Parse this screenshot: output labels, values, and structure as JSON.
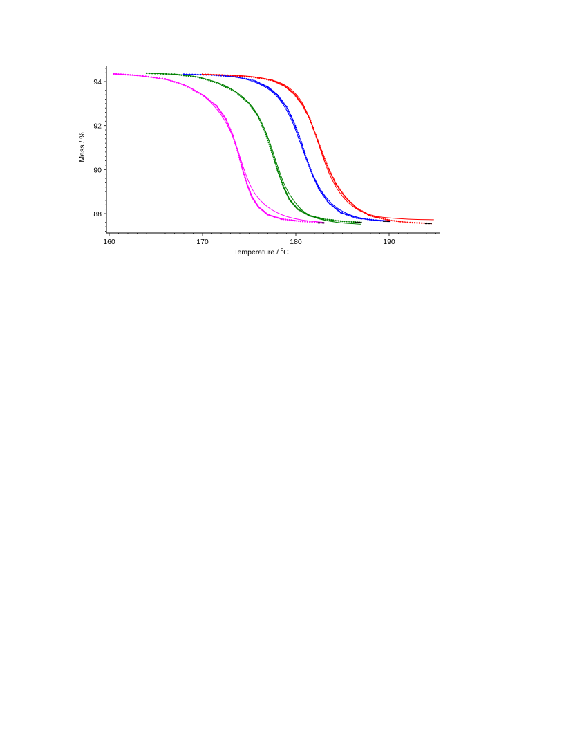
{
  "chart_data": {
    "type": "scatter",
    "title": "",
    "xlabel_main": "Temperature / ",
    "xlabel_sup": "o",
    "xlabel_tail": "C",
    "ylabel": "Mass / %",
    "xlim": [
      160,
      195
    ],
    "ylim": [
      87.2,
      94.6
    ],
    "x_ticks": [
      160,
      170,
      180,
      190
    ],
    "x_tick_labels": [
      "160",
      "170",
      "180",
      "190"
    ],
    "y_ticks": [
      88,
      90,
      92,
      94
    ],
    "y_tick_labels": [
      "88",
      "90",
      "92",
      "94"
    ],
    "grid": false,
    "legend": "none",
    "series": [
      {
        "color": "#ff00ff",
        "marker_points": [
          [
            160.5,
            94.35
          ],
          [
            163,
            94.28
          ],
          [
            166,
            94.12
          ],
          [
            168,
            93.85
          ],
          [
            170,
            93.4
          ],
          [
            171.5,
            92.9
          ],
          [
            172.5,
            92.3
          ],
          [
            173.2,
            91.6
          ],
          [
            173.8,
            90.8
          ],
          [
            174.3,
            90.0
          ],
          [
            174.8,
            89.3
          ],
          [
            175.3,
            88.75
          ],
          [
            176,
            88.3
          ],
          [
            177,
            87.95
          ],
          [
            178.5,
            87.75
          ],
          [
            180.5,
            87.65
          ],
          [
            183,
            87.58
          ]
        ],
        "fit_points": [
          [
            160.5,
            94.35
          ],
          [
            164,
            94.22
          ],
          [
            167,
            94.0
          ],
          [
            169,
            93.65
          ],
          [
            170.5,
            93.2
          ],
          [
            171.8,
            92.6
          ],
          [
            172.8,
            91.9
          ],
          [
            173.6,
            91.1
          ],
          [
            174.3,
            90.2
          ],
          [
            175,
            89.4
          ],
          [
            175.8,
            88.8
          ],
          [
            177,
            88.3
          ],
          [
            178.5,
            87.95
          ],
          [
            180.5,
            87.72
          ],
          [
            183,
            87.6
          ]
        ]
      },
      {
        "color": "#008000",
        "marker_points": [
          [
            164,
            94.38
          ],
          [
            167,
            94.33
          ],
          [
            169.5,
            94.2
          ],
          [
            171.5,
            93.95
          ],
          [
            173.5,
            93.55
          ],
          [
            175,
            93.0
          ],
          [
            176,
            92.4
          ],
          [
            176.8,
            91.6
          ],
          [
            177.5,
            90.7
          ],
          [
            178.1,
            89.9
          ],
          [
            178.7,
            89.2
          ],
          [
            179.3,
            88.65
          ],
          [
            180.2,
            88.2
          ],
          [
            181.5,
            87.9
          ],
          [
            183,
            87.75
          ],
          [
            185,
            87.65
          ],
          [
            187,
            87.6
          ]
        ],
        "fit_points": [
          [
            164,
            94.38
          ],
          [
            168,
            94.3
          ],
          [
            170.5,
            94.1
          ],
          [
            172.5,
            93.8
          ],
          [
            174.3,
            93.3
          ],
          [
            175.6,
            92.7
          ],
          [
            176.6,
            91.9
          ],
          [
            177.4,
            91.0
          ],
          [
            178.1,
            90.1
          ],
          [
            178.8,
            89.3
          ],
          [
            179.6,
            88.7
          ],
          [
            180.7,
            88.15
          ],
          [
            182.2,
            87.8
          ],
          [
            184.5,
            87.6
          ],
          [
            187,
            87.52
          ]
        ]
      },
      {
        "color": "#0000ff",
        "marker_points": [
          [
            168,
            94.33
          ],
          [
            171,
            94.3
          ],
          [
            173.5,
            94.22
          ],
          [
            175.5,
            94.05
          ],
          [
            177,
            93.75
          ],
          [
            178,
            93.4
          ],
          [
            179,
            92.85
          ],
          [
            179.8,
            92.15
          ],
          [
            180.5,
            91.35
          ],
          [
            181.1,
            90.55
          ],
          [
            181.8,
            89.75
          ],
          [
            182.5,
            89.1
          ],
          [
            183.5,
            88.5
          ],
          [
            184.8,
            88.05
          ],
          [
            186.5,
            87.8
          ],
          [
            188.5,
            87.7
          ],
          [
            190,
            87.65
          ]
        ],
        "fit_points": [
          [
            168,
            94.33
          ],
          [
            172,
            94.27
          ],
          [
            174.5,
            94.12
          ],
          [
            176.5,
            93.8
          ],
          [
            177.8,
            93.4
          ],
          [
            178.8,
            92.85
          ],
          [
            179.7,
            92.1
          ],
          [
            180.4,
            91.3
          ],
          [
            181.1,
            90.5
          ],
          [
            181.9,
            89.7
          ],
          [
            182.8,
            89.0
          ],
          [
            184,
            88.4
          ],
          [
            185.5,
            88.0
          ],
          [
            187.5,
            87.75
          ],
          [
            190,
            87.65
          ]
        ]
      },
      {
        "color": "#ff0000",
        "marker_points": [
          [
            170,
            94.33
          ],
          [
            173,
            94.28
          ],
          [
            175.5,
            94.2
          ],
          [
            177.5,
            94.05
          ],
          [
            178.8,
            93.8
          ],
          [
            179.8,
            93.45
          ],
          [
            180.7,
            92.95
          ],
          [
            181.5,
            92.3
          ],
          [
            182.2,
            91.5
          ],
          [
            182.8,
            90.8
          ],
          [
            183.5,
            90.05
          ],
          [
            184.3,
            89.35
          ],
          [
            185.3,
            88.75
          ],
          [
            186.5,
            88.25
          ],
          [
            188,
            87.9
          ],
          [
            190,
            87.7
          ],
          [
            192,
            87.6
          ],
          [
            194.5,
            87.55
          ]
        ],
        "fit_points": [
          [
            170,
            94.33
          ],
          [
            174,
            94.27
          ],
          [
            176.5,
            94.15
          ],
          [
            178.3,
            93.95
          ],
          [
            179.6,
            93.6
          ],
          [
            180.6,
            93.1
          ],
          [
            181.4,
            92.4
          ],
          [
            182.1,
            91.6
          ],
          [
            182.8,
            90.7
          ],
          [
            183.5,
            89.9
          ],
          [
            184.4,
            89.15
          ],
          [
            185.5,
            88.55
          ],
          [
            187,
            88.1
          ],
          [
            189,
            87.85
          ],
          [
            192,
            87.75
          ],
          [
            194.8,
            87.72
          ]
        ]
      }
    ]
  }
}
